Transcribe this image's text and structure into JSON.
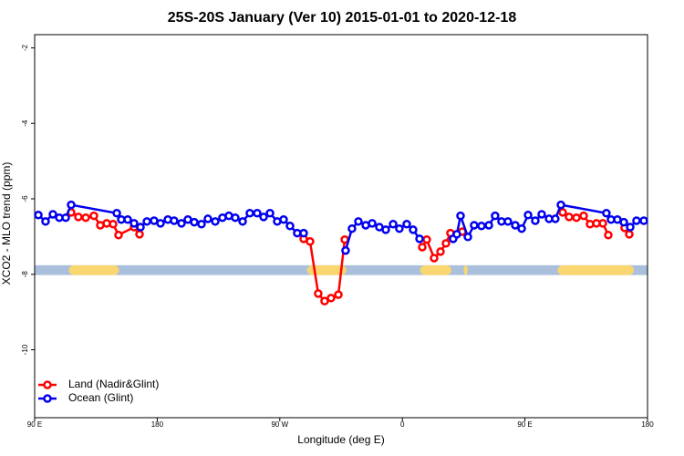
{
  "chart_data": {
    "type": "line",
    "title": "25S-20S January (Ver 10)   2015-01-01 to 2020-12-18",
    "xlabel": "Longitude (deg E)",
    "ylabel": "XCO2 - MLO trend (ppm)",
    "xlim": [
      90,
      540
    ],
    "xticks": [
      {
        "value": 90,
        "label": "90 E"
      },
      180,
      {
        "value": 270,
        "label": "90 W"
      },
      {
        "value": 360,
        "label": "0"
      },
      {
        "value": 450,
        "label": "90 E"
      },
      {
        "value": 540,
        "label": "180"
      }
    ],
    "ylim": [
      -11.8,
      -1.65
    ],
    "yticks": [
      -2,
      -4,
      -6,
      -8,
      -10
    ],
    "legend": "bottom-left",
    "surface_mask": {
      "ocean_color": "#a9bfdc",
      "land_color": "#f9d66f",
      "y_range": [
        -8.02,
        -7.76
      ],
      "land": [
        [
          115,
          152
        ],
        [
          290,
          319
        ],
        [
          373,
          396
        ],
        [
          405,
          408
        ],
        [
          474,
          530
        ]
      ]
    },
    "series": [
      {
        "name": "Land (Nadir&Glint)",
        "color": "#ff0000",
        "x": [
          116.8,
          122.1,
          127.5,
          133.5,
          138.2,
          142.9,
          147.6,
          151.6,
          163.0,
          167.0,
          null,
          287.5,
          292.2,
          298.2,
          302.9,
          307.6,
          313.0,
          317.7,
          null,
          374.6,
          377.9,
          383.3,
          388.0,
          392.0,
          395.3,
          404.0,
          null,
          477.7,
          482.4,
          487.8,
          493.1,
          497.8,
          502.5,
          507.2,
          511.2,
          null,
          523.2,
          526.6
        ],
        "values": [
          -6.36,
          -6.48,
          -6.5,
          -6.45,
          -6.7,
          -6.65,
          -6.67,
          -6.96,
          -6.75,
          -6.94,
          null,
          -7.06,
          -7.13,
          -8.51,
          -8.71,
          -8.63,
          -8.54,
          -7.08,
          null,
          -7.28,
          -7.08,
          -7.57,
          -7.4,
          -7.18,
          -6.91,
          -6.87,
          null,
          -6.36,
          -6.48,
          -6.5,
          -6.45,
          -6.67,
          -6.65,
          -6.65,
          -6.96,
          null,
          -6.77,
          -6.94
        ]
      },
      {
        "name": "Ocean (Glint)",
        "color": "#0000ee",
        "x": [
          92.7,
          98.0,
          103.4,
          108.1,
          112.8,
          116.8,
          150.3,
          153.6,
          158.3,
          163.0,
          167.7,
          172.4,
          177.7,
          182.4,
          187.8,
          192.4,
          197.8,
          202.5,
          207.2,
          212.5,
          217.2,
          222.6,
          227.9,
          232.6,
          237.3,
          242.7,
          248.0,
          253.4,
          258.1,
          262.8,
          268.1,
          272.8,
          277.5,
          282.8,
          287.5,
          null,
          318.3,
          323.0,
          327.7,
          333.1,
          337.8,
          343.1,
          347.8,
          353.2,
          357.8,
          363.2,
          367.9,
          372.6,
          null,
          397.3,
          400.0,
          402.7,
          408.1,
          412.7,
          418.1,
          423.5,
          428.1,
          432.8,
          437.5,
          442.9,
          447.6,
          452.3,
          457.6,
          462.3,
          467.7,
          472.3,
          476.4,
          509.8,
          513.2,
          517.9,
          522.6,
          527.3,
          531.9,
          537.3
        ],
        "values": [
          -6.43,
          -6.6,
          -6.41,
          -6.5,
          -6.5,
          -6.16,
          -6.38,
          -6.55,
          -6.55,
          -6.65,
          -6.75,
          -6.6,
          -6.58,
          -6.65,
          -6.55,
          -6.58,
          -6.65,
          -6.55,
          -6.62,
          -6.67,
          -6.53,
          -6.6,
          -6.5,
          -6.45,
          -6.5,
          -6.6,
          -6.38,
          -6.38,
          -6.48,
          -6.38,
          -6.6,
          -6.55,
          -6.72,
          -6.91,
          -6.91,
          null,
          -7.37,
          -6.79,
          -6.6,
          -6.7,
          -6.65,
          -6.75,
          -6.82,
          -6.67,
          -6.79,
          -6.67,
          -6.82,
          -7.06,
          null,
          -7.06,
          -6.94,
          -6.45,
          -7.01,
          -6.7,
          -6.72,
          -6.7,
          -6.45,
          -6.6,
          -6.6,
          -6.7,
          -6.79,
          -6.43,
          -6.58,
          -6.41,
          -6.53,
          -6.53,
          -6.16,
          -6.38,
          -6.55,
          -6.55,
          -6.62,
          -6.75,
          -6.58,
          -6.58
        ]
      }
    ]
  }
}
